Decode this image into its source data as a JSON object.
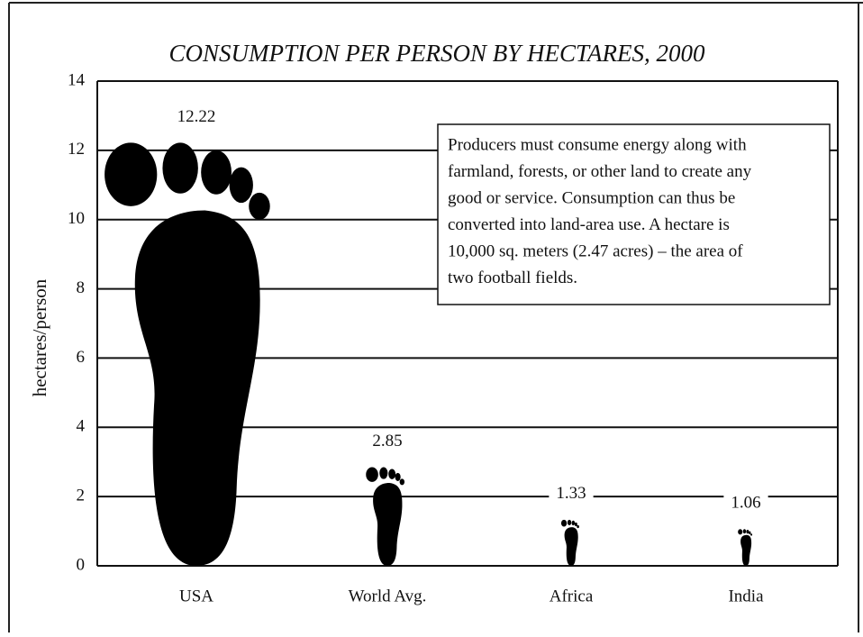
{
  "chart_data": {
    "type": "pictograph",
    "title": "CONSUMPTION PER PERSON BY HECTARES, 2000",
    "y_label": "hectares/person",
    "categories": [
      "USA",
      "World Avg.",
      "Africa",
      "India"
    ],
    "values": [
      12.22,
      2.85,
      1.33,
      1.06
    ],
    "color": "#000000",
    "ylim": [
      0,
      14
    ],
    "yticks": [
      0,
      2,
      4,
      6,
      8,
      10,
      12,
      14
    ],
    "grid": true,
    "annotation": [
      "Producers must consume energy along with",
      "farmland, forests, or other land to create any",
      "good or service. Consumption can thus be",
      "converted into land-area use. A hectare is",
      "10,000 sq. meters (2.47 acres) – the area of",
      "two football fields."
    ]
  }
}
